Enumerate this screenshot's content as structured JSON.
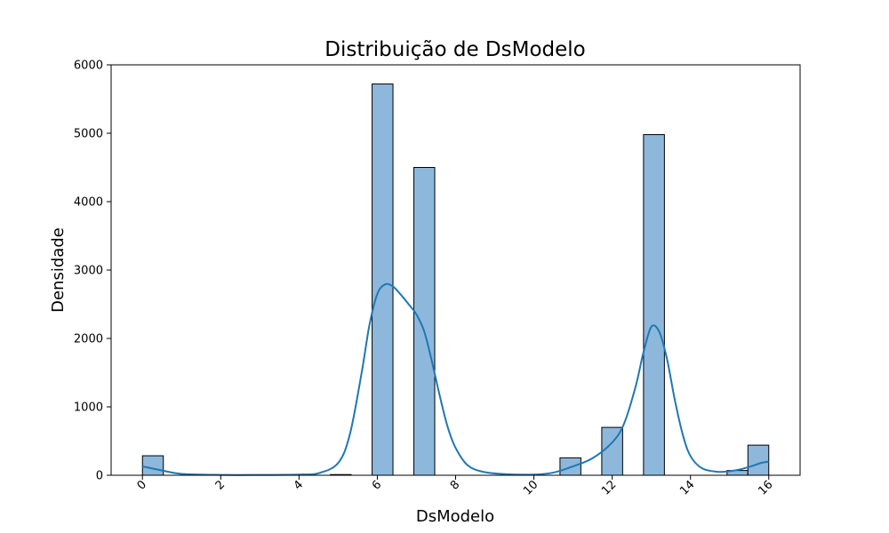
{
  "chart_data": {
    "type": "bar",
    "title": "Distribuição de DsModelo",
    "xlabel": "DsModelo",
    "ylabel": "Densidade",
    "xlim": [
      -0.8,
      16.8
    ],
    "ylim": [
      0,
      6000
    ],
    "xticks": [
      0,
      2,
      4,
      6,
      8,
      10,
      12,
      14,
      16
    ],
    "yticks": [
      0,
      1000,
      2000,
      3000,
      4000,
      5000,
      6000
    ],
    "bin_width": 0.5333,
    "bins": [
      {
        "x": 0.267,
        "value": 285
      },
      {
        "x": 5.067,
        "value": 10
      },
      {
        "x": 6.133,
        "value": 5720
      },
      {
        "x": 7.2,
        "value": 4500
      },
      {
        "x": 10.933,
        "value": 255
      },
      {
        "x": 12.0,
        "value": 700
      },
      {
        "x": 13.067,
        "value": 4980
      },
      {
        "x": 15.2,
        "value": 70
      },
      {
        "x": 15.733,
        "value": 440
      }
    ],
    "kde": {
      "x": [
        0,
        0.5,
        1,
        2,
        3,
        4,
        4.5,
        5,
        5.3,
        5.6,
        5.8,
        6.0,
        6.2,
        6.4,
        6.6,
        6.8,
        7.0,
        7.2,
        7.4,
        7.6,
        7.8,
        8.0,
        8.3,
        8.7,
        9.3,
        10,
        10.5,
        11,
        11.5,
        12,
        12.3,
        12.6,
        12.8,
        13.0,
        13.2,
        13.4,
        13.6,
        13.8,
        14.0,
        14.3,
        14.7,
        15.0,
        15.3,
        15.6,
        15.8,
        16.0
      ],
      "y": [
        130,
        70,
        20,
        5,
        5,
        10,
        30,
        180,
        600,
        1500,
        2200,
        2650,
        2790,
        2760,
        2640,
        2500,
        2350,
        2100,
        1650,
        1150,
        700,
        400,
        150,
        50,
        15,
        10,
        40,
        130,
        250,
        480,
        750,
        1300,
        1800,
        2170,
        2100,
        1700,
        1100,
        600,
        280,
        100,
        50,
        60,
        90,
        140,
        180,
        200
      ]
    },
    "bar_color": "#8db8dc",
    "bar_edge_color": "#000000",
    "kde_color": "#1f77b4",
    "grid": false,
    "legend": false
  }
}
